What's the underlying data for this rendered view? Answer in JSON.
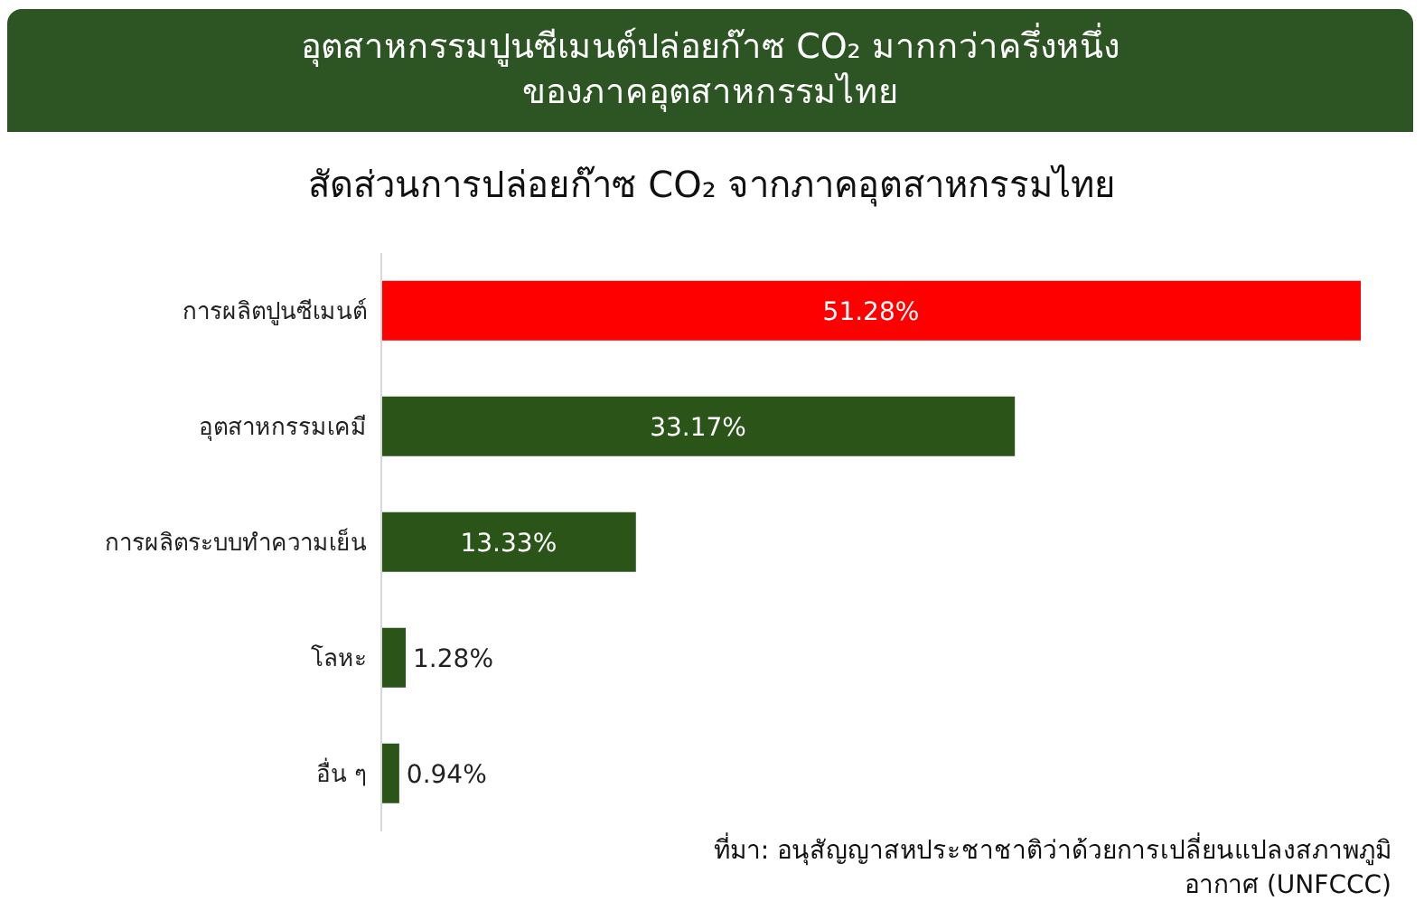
{
  "chart_data": {
    "type": "bar",
    "orientation": "horizontal",
    "title": "อุตสาหกรรมปูนซีเมนต์ปล่อยก๊าซ CO₂ มากกว่าครึ่งหนึ่งของภาคอุตสาหกรรมไทย",
    "subtitle": "สัดส่วนการปล่อยก๊าซ CO₂ จากภาคอุตสาหกรรมไทย",
    "categories": [
      "การผลิตปูนซีเมนต์",
      "อุตสาหกรรมเคมี",
      "การผลิตระบบทำความเย็น",
      "โลหะ",
      "อื่น ๆ"
    ],
    "values": [
      51.28,
      33.17,
      13.33,
      1.28,
      0.94
    ],
    "colors": [
      "#ff0000",
      "#2b5418",
      "#2b5418",
      "#2b5418",
      "#2b5418"
    ],
    "value_labels": [
      "51.28%",
      "33.17%",
      "13.33%",
      "1.28%",
      "0.94%"
    ],
    "annotations": [
      "ที่มา: อนุสัญญาสหประชาชาติว่าด้วยการเปลี่ยนแปลงสภาพภูมิอากาศ (UNFCCC)"
    ],
    "grid": false,
    "legend": false
  }
}
